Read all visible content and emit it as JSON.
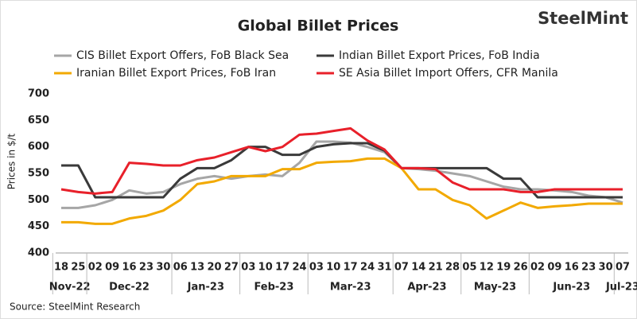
{
  "chart_data": {
    "type": "line",
    "title": "Global Billet Prices",
    "logo": "SteelMint",
    "y_label": "Prices in $/t",
    "source": "Source:  SteelMint Research",
    "categories": [
      "18",
      "25",
      "02",
      "09",
      "16",
      "23",
      "30",
      "06",
      "13",
      "20",
      "27",
      "03",
      "10",
      "17",
      "24",
      "03",
      "10",
      "17",
      "24",
      "31",
      "07",
      "14",
      "21",
      "28",
      "05",
      "12",
      "19",
      "26",
      "02",
      "09",
      "16",
      "23",
      "30",
      "07"
    ],
    "months": [
      {
        "name": "Nov-22",
        "count": 2
      },
      {
        "name": "Dec-22",
        "count": 5
      },
      {
        "name": "Jan-23",
        "count": 4
      },
      {
        "name": "Feb-23",
        "count": 4
      },
      {
        "name": "Mar-23",
        "count": 5
      },
      {
        "name": "Apr-23",
        "count": 4
      },
      {
        "name": "May-23",
        "count": 4
      },
      {
        "name": "Jun-23",
        "count": 5
      },
      {
        "name": "Jul-23",
        "count": 1
      }
    ],
    "series": [
      {
        "name": "CIS Billet Export Offers, FoB Black Sea",
        "color": "#a6a6a6",
        "values": [
          485,
          485,
          490,
          500,
          518,
          512,
          515,
          530,
          540,
          545,
          540,
          545,
          548,
          545,
          570,
          610,
          610,
          608,
          600,
          590,
          560,
          558,
          555,
          550,
          545,
          535,
          525,
          520,
          520,
          518,
          515,
          508,
          505,
          495
        ]
      },
      {
        "name": "Indian Billet Export Prices, FoB India",
        "color": "#3a3a3a",
        "values": [
          565,
          565,
          505,
          505,
          505,
          505,
          505,
          540,
          560,
          560,
          575,
          600,
          600,
          585,
          585,
          600,
          605,
          607,
          607,
          593,
          560,
          560,
          560,
          560,
          560,
          560,
          540,
          540,
          505,
          505,
          505,
          505,
          505,
          505
        ]
      },
      {
        "name": "Iranian Billet Export Prices, FoB Iran",
        "color": "#f2a900",
        "values": [
          458,
          458,
          455,
          455,
          465,
          470,
          480,
          500,
          530,
          535,
          545,
          545,
          545,
          558,
          558,
          570,
          572,
          573,
          578,
          578,
          560,
          520,
          520,
          500,
          490,
          465,
          480,
          495,
          485,
          488,
          490,
          493,
          493,
          493
        ]
      },
      {
        "name": "SE Asia Billet Import Offers, CFR Manila",
        "color": "#e8202a",
        "values": [
          520,
          515,
          512,
          515,
          570,
          568,
          565,
          565,
          575,
          580,
          590,
          600,
          592,
          600,
          623,
          625,
          630,
          635,
          612,
          595,
          560,
          560,
          558,
          533,
          520,
          520,
          520,
          515,
          515,
          520,
          520,
          520,
          520,
          520
        ]
      }
    ],
    "ylim": [
      400,
      700
    ],
    "yticks": [
      400,
      450,
      500,
      550,
      600,
      650,
      700
    ],
    "grid": false
  }
}
